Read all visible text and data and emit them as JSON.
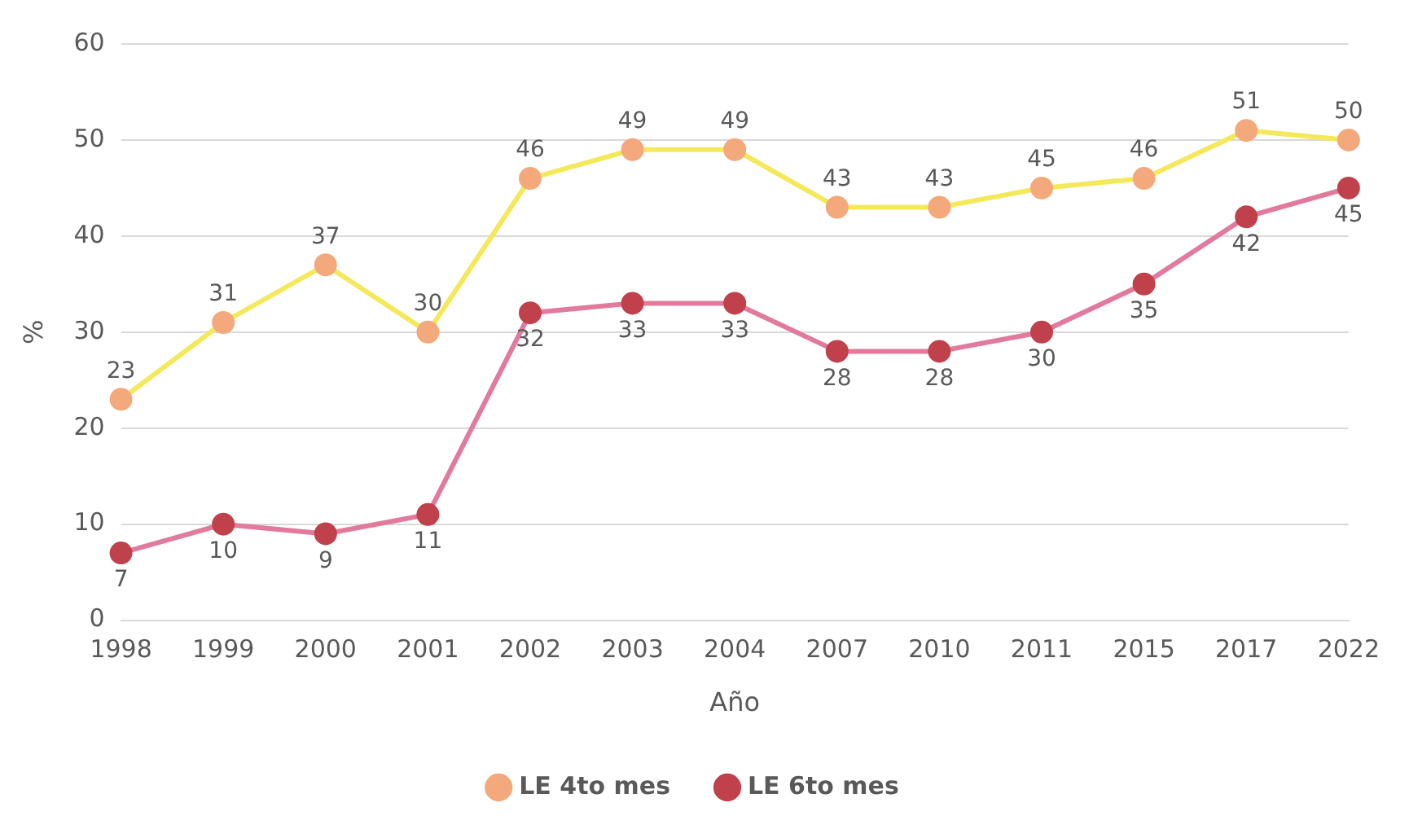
{
  "chart_data": {
    "type": "line",
    "xlabel": "Año",
    "ylabel": "%",
    "categories": [
      "1998",
      "1999",
      "2000",
      "2001",
      "2002",
      "2003",
      "2004",
      "2007",
      "2010",
      "2011",
      "2015",
      "2017",
      "2022"
    ],
    "series": [
      {
        "name": "LE 4to mes",
        "color": "#f3e95a",
        "colors": [
          "#f4a97c",
          "#f4a97c",
          "#f4a97c",
          "#f4a97c",
          "#f4a97c",
          "#f4a97c",
          "#f4a97c",
          "#f4a97c",
          "#f4a97c",
          "#f4a97c",
          "#f4a97c",
          "#f4a97c",
          "#f4a97c"
        ],
        "values": [
          23,
          31,
          37,
          30,
          46,
          49,
          49,
          43,
          43,
          45,
          46,
          51,
          50
        ]
      },
      {
        "name": "LE 6to mes",
        "color": "#e27a9c",
        "colors": [
          "#c0414c",
          "#c0414c",
          "#c0414c",
          "#c0414c",
          "#c0414c",
          "#c0414c",
          "#c0414c",
          "#c0414c",
          "#c0414c",
          "#c0414c",
          "#c0414c",
          "#c0414c",
          "#c0414c"
        ],
        "values": [
          7,
          10,
          9,
          11,
          32,
          33,
          33,
          28,
          28,
          30,
          35,
          42,
          45
        ]
      }
    ],
    "ylim": [
      0,
      60
    ],
    "yticks": [
      0,
      10,
      20,
      30,
      40,
      50,
      60
    ],
    "grid": "y",
    "legend": "bottom",
    "marker": "circle",
    "line_style": "solid",
    "data_labels": true
  }
}
